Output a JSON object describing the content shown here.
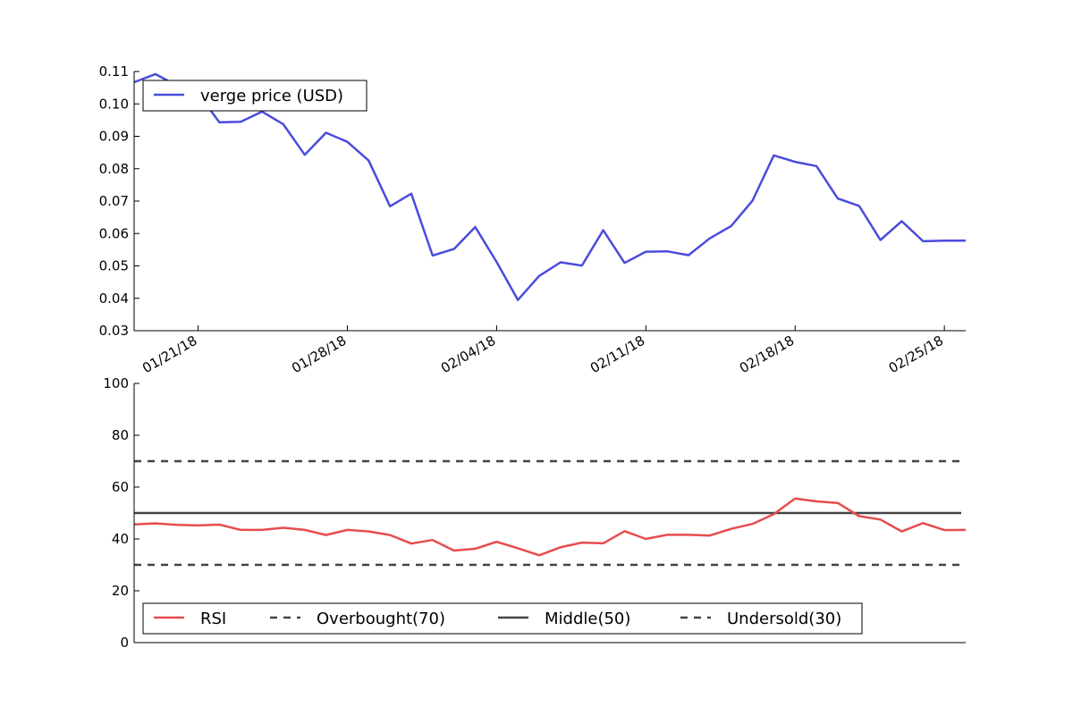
{
  "chart_data": [
    {
      "type": "line",
      "xlabel": "",
      "ylabel": "",
      "ylim": [
        0.03,
        0.11
      ],
      "yticks": [
        "0.03",
        "0.04",
        "0.05",
        "0.06",
        "0.07",
        "0.08",
        "0.09",
        "0.10",
        "0.11"
      ],
      "xlim": [
        "2018-01-18",
        "2018-02-26"
      ],
      "xticks": [
        {
          "date": "2018-01-21",
          "label": "01/21/18"
        },
        {
          "date": "2018-01-28",
          "label": "01/28/18"
        },
        {
          "date": "2018-02-04",
          "label": "02/04/18"
        },
        {
          "date": "2018-02-11",
          "label": "02/11/18"
        },
        {
          "date": "2018-02-18",
          "label": "02/18/18"
        },
        {
          "date": "2018-02-25",
          "label": "02/25/18"
        }
      ],
      "grid": false,
      "legend_position": "top-left",
      "series": [
        {
          "name": "verge price (USD)",
          "color": "#4b4bdd",
          "x": [
            "2018-01-18",
            "2018-01-19",
            "2018-01-20",
            "2018-01-21",
            "2018-01-22",
            "2018-01-23",
            "2018-01-24",
            "2018-01-25",
            "2018-01-26",
            "2018-01-27",
            "2018-01-28",
            "2018-01-29",
            "2018-01-30",
            "2018-01-31",
            "2018-02-01",
            "2018-02-02",
            "2018-02-03",
            "2018-02-04",
            "2018-02-05",
            "2018-02-06",
            "2018-02-07",
            "2018-02-08",
            "2018-02-09",
            "2018-02-10",
            "2018-02-11",
            "2018-02-12",
            "2018-02-13",
            "2018-02-14",
            "2018-02-15",
            "2018-02-16",
            "2018-02-17",
            "2018-02-18",
            "2018-02-19",
            "2018-02-20",
            "2018-02-21",
            "2018-02-22",
            "2018-02-23",
            "2018-02-24",
            "2018-02-25",
            "2018-02-26"
          ],
          "values": [
            0.1067,
            0.1092,
            0.1057,
            0.1032,
            0.0943,
            0.0945,
            0.0976,
            0.0937,
            0.0843,
            0.0911,
            0.0883,
            0.0825,
            0.0684,
            0.0723,
            0.0532,
            0.0552,
            0.062,
            0.0512,
            0.0395,
            0.0469,
            0.0511,
            0.0501,
            0.061,
            0.0509,
            0.0544,
            0.0545,
            0.0533,
            0.0585,
            0.0623,
            0.0701,
            0.0841,
            0.0821,
            0.0808,
            0.0708,
            0.0685,
            0.058,
            0.0638,
            0.0576,
            0.0578,
            0.0578
          ]
        }
      ]
    },
    {
      "type": "line",
      "xlabel": "",
      "ylabel": "",
      "ylim": [
        0,
        100
      ],
      "yticks": [
        "0",
        "20",
        "40",
        "60",
        "80",
        "100"
      ],
      "xlim": [
        "2018-01-18",
        "2018-02-26"
      ],
      "grid": false,
      "legend_position": "bottom-left",
      "series": [
        {
          "name": "RSI",
          "color": "#e84c4c",
          "style": "solid",
          "x": [
            "2018-01-18",
            "2018-01-19",
            "2018-01-20",
            "2018-01-21",
            "2018-01-22",
            "2018-01-23",
            "2018-01-24",
            "2018-01-25",
            "2018-01-26",
            "2018-01-27",
            "2018-01-28",
            "2018-01-29",
            "2018-01-30",
            "2018-01-31",
            "2018-02-01",
            "2018-02-02",
            "2018-02-03",
            "2018-02-04",
            "2018-02-05",
            "2018-02-06",
            "2018-02-07",
            "2018-02-08",
            "2018-02-09",
            "2018-02-10",
            "2018-02-11",
            "2018-02-12",
            "2018-02-13",
            "2018-02-14",
            "2018-02-15",
            "2018-02-16",
            "2018-02-17",
            "2018-02-18",
            "2018-02-19",
            "2018-02-20",
            "2018-02-21",
            "2018-02-22",
            "2018-02-23",
            "2018-02-24",
            "2018-02-25",
            "2018-02-26"
          ],
          "values": [
            45.6,
            46.0,
            45.4,
            45.2,
            45.5,
            43.5,
            43.5,
            44.3,
            43.5,
            41.5,
            43.5,
            42.9,
            41.5,
            38.2,
            39.6,
            35.5,
            36.2,
            38.9,
            36.4,
            33.7,
            36.8,
            38.6,
            38.3,
            43.0,
            40.0,
            41.6,
            41.6,
            41.3,
            43.9,
            45.8,
            49.6,
            55.6,
            54.5,
            53.9,
            48.8,
            47.5,
            42.9,
            46.1,
            43.4,
            43.5
          ]
        },
        {
          "name": "Overbought(70)",
          "color": "#444444",
          "style": "dashed",
          "value": 70
        },
        {
          "name": "Middle(50)",
          "color": "#444444",
          "style": "solid",
          "value": 50
        },
        {
          "name": "Undersold(30)",
          "color": "#444444",
          "style": "dashed",
          "value": 30
        }
      ]
    }
  ]
}
